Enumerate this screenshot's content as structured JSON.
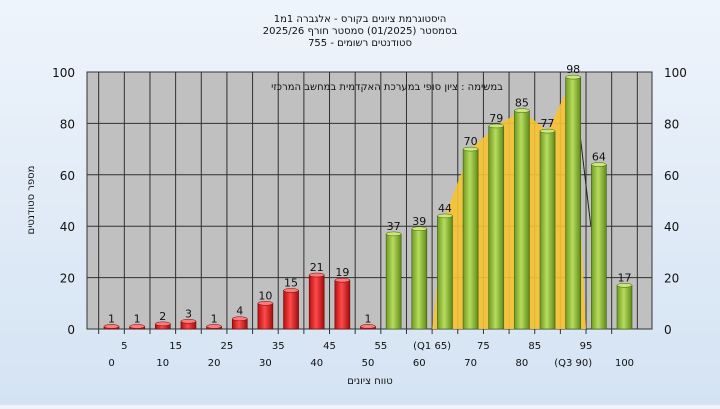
{
  "chart_data": {
    "type": "bar",
    "title_lines": [
      "היסטוגרמת ציונים בקורס - אלגברה 1מ1",
      "בסמסטר  (01/2025)  סמסטר חורף 2025/26",
      "סטודנטים רשומים - 755"
    ],
    "annotation": "במשימה : ציון סופי במערכת האקדמית במחשב המרכזי",
    "ylabel": "מספר סטודנטים",
    "xlabel": "טווח ציונים",
    "ylim": [
      0,
      100
    ],
    "yticks": [
      0,
      20,
      40,
      60,
      80,
      100
    ],
    "grid": true,
    "values": [
      1,
      1,
      2,
      3,
      1,
      4,
      10,
      15,
      21,
      19,
      1,
      37,
      39,
      44,
      70,
      79,
      85,
      77,
      98,
      64,
      17
    ],
    "bar_labels": [
      "1",
      "1",
      "2",
      "3",
      "1",
      "4",
      "10",
      "15",
      "21",
      "19",
      "1",
      "37",
      "39",
      "44",
      "70",
      "79",
      "85",
      "77",
      "98",
      "64",
      "17"
    ],
    "pass_from_index": 11,
    "xtick_labels_upper": [
      "5",
      "15",
      "25",
      "35",
      "45",
      "55",
      "(Q1 65)",
      "75",
      "85",
      "95"
    ],
    "xtick_labels_lower": [
      "0",
      "10",
      "20",
      "30",
      "40",
      "50",
      "60",
      "70",
      "80",
      "(Q3 90)",
      "100"
    ],
    "colors": {
      "fail_bar": "#e02020",
      "pass_bar": "#8fbf3a",
      "plot_bg": "#c0c0c0",
      "grid": "#303030",
      "quartile_area": "#f7c233"
    }
  }
}
